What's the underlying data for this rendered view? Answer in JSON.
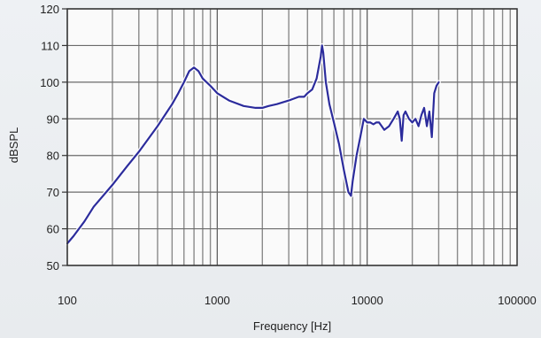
{
  "chart_data": {
    "type": "line",
    "title": "",
    "xlabel": "Frequency [Hz]",
    "ylabel": "dBSPL",
    "xscale": "log",
    "xlim": [
      100,
      100000
    ],
    "ylim": [
      50,
      120
    ],
    "x_ticks": [
      100,
      1000,
      10000,
      100000
    ],
    "x_tick_labels": [
      "100",
      "1000",
      "10000",
      "100000"
    ],
    "y_ticks": [
      50,
      60,
      70,
      80,
      90,
      100,
      110,
      120
    ],
    "y_tick_labels": [
      "50",
      "60",
      "70",
      "80",
      "90",
      "100",
      "110",
      "120"
    ],
    "grid": true,
    "legend": "none",
    "series": [
      {
        "color": "#2c2c9c",
        "x": [
          100,
          110,
          130,
          150,
          200,
          250,
          300,
          400,
          500,
          550,
          600,
          650,
          700,
          750,
          800,
          900,
          1000,
          1200,
          1500,
          1800,
          2000,
          2200,
          2500,
          3000,
          3500,
          3800,
          4000,
          4300,
          4600,
          4900,
          5000,
          5100,
          5300,
          5600,
          6000,
          6500,
          7000,
          7500,
          7800,
          8000,
          8500,
          9000,
          9500,
          10000,
          10500,
          11000,
          11500,
          12000,
          13000,
          14000,
          15000,
          16000,
          16500,
          17000,
          17500,
          18000,
          19000,
          20000,
          21000,
          22000,
          23000,
          24000,
          25000,
          26000,
          27000,
          28000,
          29000,
          30000
        ],
        "y": [
          56,
          58,
          62,
          66,
          72,
          77,
          81,
          88,
          94,
          97,
          100,
          103,
          104,
          103,
          101,
          99,
          97,
          95,
          93.5,
          93,
          93,
          93.5,
          94,
          95,
          96,
          96,
          97,
          98,
          101,
          107,
          110,
          108,
          100,
          94,
          89,
          83,
          76,
          70,
          69,
          73,
          80,
          85,
          90,
          89,
          89,
          88.5,
          89,
          89,
          87,
          88,
          90,
          92,
          90,
          84,
          91,
          92,
          90,
          89,
          90,
          88,
          91,
          93,
          88,
          92,
          85,
          97,
          99,
          100
        ]
      }
    ]
  }
}
